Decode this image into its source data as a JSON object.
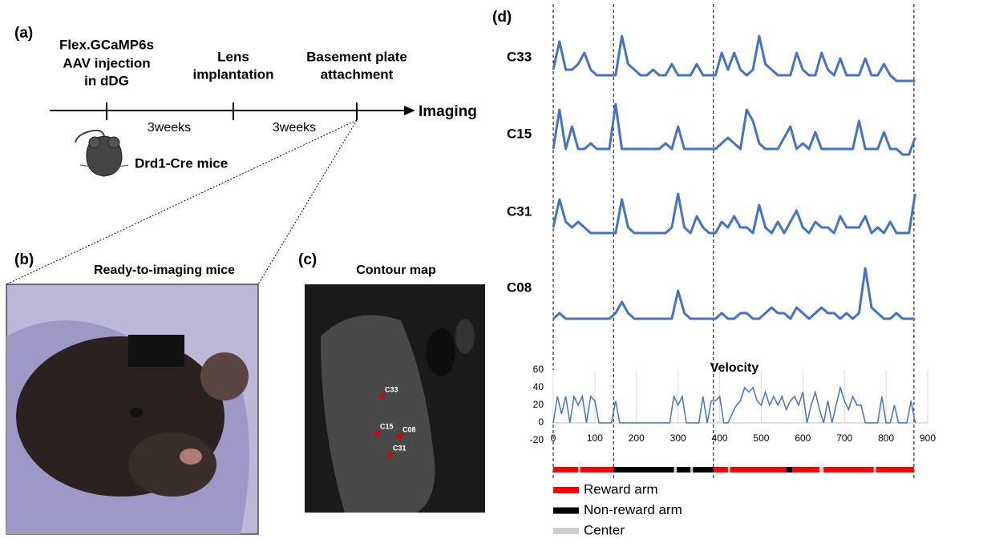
{
  "panels": {
    "a": {
      "label": "(a)",
      "steps": [
        [
          "Flex.GCaMP6s",
          "AAV injection",
          "in dDG"
        ],
        [
          "Lens",
          "implantation"
        ],
        [
          "Basement plate",
          "attachment"
        ]
      ],
      "intervals": [
        "3weeks",
        "3weeks"
      ],
      "end_label": "Imaging",
      "mouse_label": "Drd1-Cre mice"
    },
    "b": {
      "label": "(b)",
      "title": "Ready-to-imaging mice"
    },
    "c": {
      "label": "(c)",
      "title": "Contour map",
      "cells": [
        "C33",
        "C15",
        "C08",
        "C31"
      ]
    }
  },
  "chart_data": [
    {
      "type": "line",
      "label": "(d)",
      "xlim": [
        0,
        900
      ],
      "x": [
        0,
        15,
        30,
        45,
        60,
        75,
        90,
        105,
        120,
        135,
        150,
        165,
        180,
        195,
        210,
        225,
        240,
        255,
        270,
        285,
        300,
        315,
        330,
        345,
        360,
        375,
        390,
        405,
        420,
        435,
        450,
        465,
        480,
        495,
        510,
        525,
        540,
        555,
        570,
        585,
        600,
        615,
        630,
        645,
        660,
        675,
        690,
        705,
        720,
        735,
        750,
        765,
        780,
        795,
        810,
        825,
        840,
        855,
        870
      ],
      "dividers": [
        0,
        145,
        385,
        867
      ],
      "series": [
        {
          "name": "C33",
          "color": "#4472c4",
          "values": [
            3,
            8,
            3,
            3,
            4,
            6,
            3,
            2,
            2,
            2,
            2,
            9,
            4,
            3,
            2,
            2,
            3,
            2,
            2,
            4,
            2,
            2,
            2,
            4,
            2,
            2,
            2,
            6,
            3,
            6,
            3,
            2,
            3,
            9,
            4,
            3,
            2,
            2,
            2,
            6,
            3,
            2,
            2,
            6,
            3,
            2,
            5,
            2,
            2,
            2,
            5,
            2,
            2,
            4,
            2,
            1,
            1,
            1,
            1
          ]
        },
        {
          "name": "C15",
          "color": "#4472c4",
          "values": [
            2,
            9,
            2,
            6,
            2,
            2,
            3,
            2,
            2,
            2,
            10,
            2,
            2,
            2,
            2,
            2,
            2,
            2,
            3,
            2,
            6,
            2,
            2,
            2,
            2,
            2,
            2,
            3,
            4,
            3,
            2,
            9,
            7,
            3,
            2,
            2,
            2,
            4,
            6,
            2,
            3,
            2,
            5,
            2,
            2,
            2,
            2,
            2,
            2,
            7,
            2,
            2,
            2,
            5,
            2,
            2,
            1,
            1,
            4
          ]
        },
        {
          "name": "C31",
          "color": "#4472c4",
          "values": [
            3,
            8,
            4,
            3,
            4,
            3,
            2,
            2,
            2,
            2,
            2,
            8,
            3,
            2,
            2,
            2,
            2,
            2,
            2,
            3,
            9,
            3,
            2,
            5,
            3,
            2,
            2,
            4,
            3,
            5,
            3,
            3,
            2,
            7,
            3,
            2,
            4,
            2,
            4,
            6,
            3,
            2,
            4,
            3,
            3,
            2,
            5,
            3,
            3,
            3,
            5,
            2,
            3,
            2,
            4,
            2,
            2,
            2,
            9
          ]
        },
        {
          "name": "C08",
          "color": "#4472c4",
          "values": [
            1,
            2,
            1,
            1,
            1,
            1,
            1,
            1,
            1,
            1,
            2,
            4,
            2,
            1,
            1,
            1,
            1,
            1,
            1,
            1,
            6,
            2,
            1,
            1,
            1,
            1,
            1,
            2,
            1,
            1,
            2,
            2,
            1,
            1,
            2,
            3,
            2,
            2,
            1,
            3,
            2,
            1,
            2,
            3,
            2,
            2,
            1,
            2,
            1,
            2,
            10,
            3,
            2,
            1,
            1,
            2,
            1,
            1,
            1
          ]
        }
      ]
    },
    {
      "type": "line",
      "title": "Velocity",
      "color": "#4472c4",
      "grid": true,
      "xlim": [
        0,
        900
      ],
      "ylim": [
        -20,
        60
      ],
      "xticks": [
        0,
        100,
        200,
        300,
        400,
        500,
        600,
        700,
        800,
        900
      ],
      "yticks": [
        60,
        40,
        20,
        0,
        -20
      ],
      "x": [
        0,
        10,
        20,
        30,
        40,
        50,
        60,
        70,
        80,
        90,
        100,
        110,
        120,
        130,
        140,
        150,
        160,
        170,
        180,
        190,
        200,
        210,
        220,
        230,
        240,
        250,
        260,
        270,
        280,
        290,
        300,
        310,
        320,
        330,
        340,
        350,
        360,
        370,
        380,
        390,
        400,
        410,
        420,
        430,
        440,
        450,
        460,
        470,
        480,
        490,
        500,
        510,
        520,
        530,
        540,
        550,
        560,
        570,
        580,
        590,
        600,
        610,
        620,
        630,
        640,
        650,
        660,
        670,
        680,
        690,
        700,
        710,
        720,
        730,
        740,
        750,
        760,
        770,
        780,
        790,
        800,
        810,
        820,
        830,
        840,
        850,
        860,
        870
      ],
      "values": [
        0,
        30,
        10,
        30,
        0,
        30,
        20,
        30,
        0,
        30,
        25,
        0,
        0,
        0,
        0,
        25,
        0,
        0,
        0,
        0,
        0,
        0,
        0,
        0,
        0,
        0,
        0,
        0,
        0,
        30,
        20,
        30,
        0,
        0,
        0,
        0,
        30,
        0,
        25,
        25,
        30,
        0,
        0,
        10,
        20,
        25,
        40,
        35,
        40,
        25,
        20,
        35,
        20,
        30,
        20,
        30,
        15,
        25,
        30,
        20,
        35,
        0,
        20,
        35,
        15,
        0,
        25,
        0,
        20,
        40,
        25,
        15,
        30,
        20,
        20,
        0,
        0,
        0,
        0,
        30,
        0,
        0,
        20,
        0,
        0,
        0,
        25,
        0
      ],
      "arm_legend": [
        {
          "name": "Reward arm",
          "color": "#ff0000"
        },
        {
          "name": "Non-reward arm",
          "color": "#000000"
        },
        {
          "name": "Center",
          "color": "#cccccc"
        }
      ],
      "segments": [
        {
          "start": 0,
          "end": 60,
          "arm": 0
        },
        {
          "start": 60,
          "end": 65,
          "arm": 2
        },
        {
          "start": 65,
          "end": 145,
          "arm": 0
        },
        {
          "start": 145,
          "end": 290,
          "arm": 1
        },
        {
          "start": 290,
          "end": 297,
          "arm": 2
        },
        {
          "start": 297,
          "end": 330,
          "arm": 1
        },
        {
          "start": 330,
          "end": 336,
          "arm": 2
        },
        {
          "start": 336,
          "end": 385,
          "arm": 1
        },
        {
          "start": 385,
          "end": 420,
          "arm": 0
        },
        {
          "start": 420,
          "end": 425,
          "arm": 2
        },
        {
          "start": 425,
          "end": 560,
          "arm": 0
        },
        {
          "start": 560,
          "end": 575,
          "arm": 1
        },
        {
          "start": 575,
          "end": 640,
          "arm": 0
        },
        {
          "start": 640,
          "end": 650,
          "arm": 2
        },
        {
          "start": 650,
          "end": 770,
          "arm": 0
        },
        {
          "start": 770,
          "end": 776,
          "arm": 2
        },
        {
          "start": 776,
          "end": 867,
          "arm": 0
        }
      ]
    }
  ]
}
